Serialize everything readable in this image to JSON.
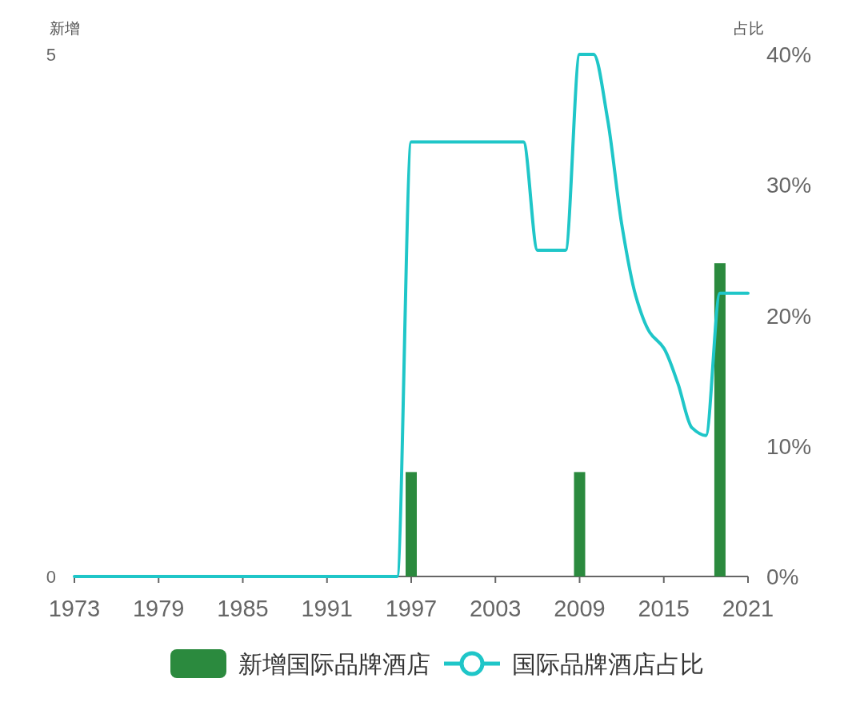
{
  "chart_data": {
    "type": "bar",
    "ylabel": "新增",
    "y2label": "占比",
    "x": [
      1973,
      1974,
      1975,
      1976,
      1977,
      1978,
      1979,
      1980,
      1981,
      1982,
      1983,
      1984,
      1985,
      1986,
      1987,
      1988,
      1989,
      1990,
      1991,
      1992,
      1993,
      1994,
      1995,
      1996,
      1997,
      1998,
      1999,
      2000,
      2001,
      2002,
      2003,
      2004,
      2005,
      2006,
      2007,
      2008,
      2009,
      2010,
      2011,
      2012,
      2013,
      2014,
      2015,
      2016,
      2017,
      2018,
      2019,
      2020,
      2021
    ],
    "series": [
      {
        "name": "新增国际品牌酒店",
        "color": "#2b8a3e",
        "values": [
          0,
          0,
          0,
          0,
          0,
          0,
          0,
          0,
          0,
          0,
          0,
          0,
          0,
          0,
          0,
          0,
          0,
          0,
          0,
          0,
          0,
          0,
          0,
          0,
          1,
          0,
          0,
          0,
          0,
          0,
          0,
          0,
          0,
          0,
          0,
          0,
          1,
          0,
          0,
          0,
          0,
          0,
          0,
          0,
          0,
          0,
          3,
          0,
          0
        ]
      },
      {
        "name": "国际品牌酒店占比",
        "type": "line",
        "axis": "y2",
        "color": "#1fc6c8",
        "values": [
          0,
          0,
          0,
          0,
          0,
          0,
          0,
          0,
          0,
          0,
          0,
          0,
          0,
          0,
          0,
          0,
          0,
          0,
          0,
          0,
          0,
          0,
          0,
          0,
          33.3,
          33.3,
          33.3,
          33.3,
          33.3,
          33.3,
          33.3,
          33.3,
          33.3,
          25,
          25,
          25,
          40,
          40,
          35,
          27,
          21.5,
          18.7,
          17.5,
          14.8,
          11.4,
          10.8,
          21.7,
          21.7,
          21.7
        ]
      }
    ],
    "xlim": [
      1973,
      2021
    ],
    "xticks": [
      1973,
      1979,
      1985,
      1991,
      1997,
      2003,
      2009,
      2015,
      2021
    ],
    "ylim": [
      0,
      5
    ],
    "yticks": [
      0,
      5
    ],
    "y2lim": [
      0,
      40
    ],
    "y2ticks": [
      {
        "value": 0,
        "label": "0%"
      },
      {
        "value": 10,
        "label": "10%"
      },
      {
        "value": 20,
        "label": "20%"
      },
      {
        "value": 30,
        "label": "30%"
      },
      {
        "value": 40,
        "label": "40%"
      }
    ],
    "grid": false,
    "legend": "bottom"
  }
}
